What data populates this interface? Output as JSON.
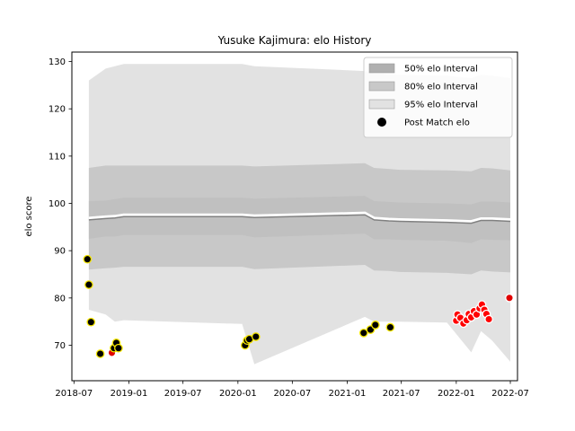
{
  "chart_data": {
    "type": "line",
    "title": "Yusuke Kajimura: elo History",
    "xlabel": "",
    "ylabel": "elo score",
    "xlim": [
      "2018-06-24",
      "2022-07-25"
    ],
    "ylim": [
      62.5,
      132
    ],
    "x_ticks": [
      "2018-07",
      "2019-01",
      "2019-07",
      "2020-01",
      "2020-07",
      "2021-01",
      "2021-07",
      "2022-01",
      "2022-07"
    ],
    "y_ticks": [
      70,
      80,
      90,
      100,
      110,
      120,
      130
    ],
    "legend_position": "top-right",
    "legend": [
      {
        "label": "50% elo Interval",
        "kind": "band",
        "color": "#b0b0b0"
      },
      {
        "label": "80% elo Interval",
        "kind": "band",
        "color": "#c8c8c8"
      },
      {
        "label": "95% elo Interval",
        "kind": "band",
        "color": "#e2e2e2"
      },
      {
        "label": "Post Match elo",
        "kind": "marker",
        "color": "#000000"
      }
    ],
    "bands": {
      "x": [
        "2018-08-20",
        "2018-10-15",
        "2018-11-15",
        "2018-12-15",
        "2020-01-15",
        "2020-02-25",
        "2021-03-01",
        "2021-04-01",
        "2021-05-20",
        "2021-06-25",
        "2021-12-01",
        "2022-02-20",
        "2022-03-25",
        "2022-05-01",
        "2022-07-01"
      ],
      "mean": [
        96.5,
        96.8,
        96.9,
        97.2,
        97.2,
        97.0,
        97.6,
        96.5,
        96.3,
        96.2,
        96.0,
        95.8,
        96.4,
        96.4,
        96.2
      ],
      "p50_lo": [
        92.5,
        93.0,
        93.0,
        93.3,
        93.3,
        92.8,
        93.6,
        92.4,
        92.4,
        92.3,
        92.1,
        91.6,
        92.4,
        92.3,
        92.2
      ],
      "p50_hi": [
        100.5,
        100.6,
        100.9,
        101.2,
        101.2,
        101.0,
        101.6,
        100.5,
        100.3,
        100.2,
        100.0,
        99.8,
        100.4,
        100.4,
        100.2
      ],
      "p80_lo": [
        86.0,
        86.3,
        86.4,
        86.6,
        86.6,
        86.1,
        87.0,
        85.8,
        85.7,
        85.5,
        85.3,
        85.0,
        85.8,
        85.6,
        85.4
      ],
      "p80_hi": [
        107.5,
        108.0,
        108.0,
        108.0,
        108.0,
        107.8,
        108.5,
        107.5,
        107.3,
        107.1,
        107.0,
        106.8,
        107.5,
        107.4,
        107.0
      ],
      "p95_lo": [
        77.5,
        76.5,
        75.0,
        75.3,
        74.5,
        66.0,
        76.0,
        75.0,
        75.0,
        75.0,
        74.8,
        68.5,
        73.0,
        71.0,
        66.5
      ],
      "p95_hi": [
        126.0,
        128.5,
        129.0,
        129.5,
        129.5,
        129.0,
        128.0,
        127.5,
        127.3,
        127.2,
        127.0,
        126.5,
        127.2,
        127.0,
        126.5
      ]
    },
    "post_match_elo": [
      {
        "x": "2018-08-15",
        "y": 88.2,
        "color": "#000000"
      },
      {
        "x": "2018-08-20",
        "y": 82.8,
        "color": "#000000"
      },
      {
        "x": "2018-08-27",
        "y": 74.9,
        "color": "#000000"
      },
      {
        "x": "2018-09-27",
        "y": 68.2,
        "color": "#000000"
      },
      {
        "x": "2018-11-05",
        "y": 68.4,
        "color": "#e00000"
      },
      {
        "x": "2018-11-12",
        "y": 69.4,
        "color": "#000000"
      },
      {
        "x": "2018-11-20",
        "y": 70.5,
        "color": "#000000"
      },
      {
        "x": "2018-11-27",
        "y": 69.4,
        "color": "#000000"
      },
      {
        "x": "2020-01-25",
        "y": 70.0,
        "color": "#000000"
      },
      {
        "x": "2020-02-01",
        "y": 71.0,
        "color": "#000000"
      },
      {
        "x": "2020-02-08",
        "y": 71.3,
        "color": "#000000"
      },
      {
        "x": "2020-03-01",
        "y": 71.8,
        "color": "#000000"
      },
      {
        "x": "2021-02-25",
        "y": 72.6,
        "color": "#000000"
      },
      {
        "x": "2021-03-20",
        "y": 73.3,
        "color": "#000000"
      },
      {
        "x": "2021-04-05",
        "y": 74.3,
        "color": "#000000"
      },
      {
        "x": "2021-05-25",
        "y": 73.8,
        "color": "#000000"
      },
      {
        "x": "2022-01-01",
        "y": 75.2,
        "color": "#ff0000"
      },
      {
        "x": "2022-01-05",
        "y": 76.5,
        "color": "#ff0000"
      },
      {
        "x": "2022-01-15",
        "y": 75.8,
        "color": "#ff0000"
      },
      {
        "x": "2022-01-25",
        "y": 74.6,
        "color": "#ff0000"
      },
      {
        "x": "2022-02-05",
        "y": 75.3,
        "color": "#ff0000"
      },
      {
        "x": "2022-02-12",
        "y": 76.6,
        "color": "#ff0000"
      },
      {
        "x": "2022-02-20",
        "y": 75.9,
        "color": "#ff0000"
      },
      {
        "x": "2022-03-01",
        "y": 77.2,
        "color": "#ff0000"
      },
      {
        "x": "2022-03-10",
        "y": 76.5,
        "color": "#ff0000"
      },
      {
        "x": "2022-03-20",
        "y": 77.8,
        "color": "#ff0000"
      },
      {
        "x": "2022-03-28",
        "y": 78.6,
        "color": "#ff0000"
      },
      {
        "x": "2022-04-05",
        "y": 77.5,
        "color": "#ff0000"
      },
      {
        "x": "2022-04-12",
        "y": 76.6,
        "color": "#ff0000"
      },
      {
        "x": "2022-04-20",
        "y": 75.5,
        "color": "#ff0000"
      },
      {
        "x": "2022-06-28",
        "y": 80.0,
        "color": "#e00000"
      }
    ]
  }
}
